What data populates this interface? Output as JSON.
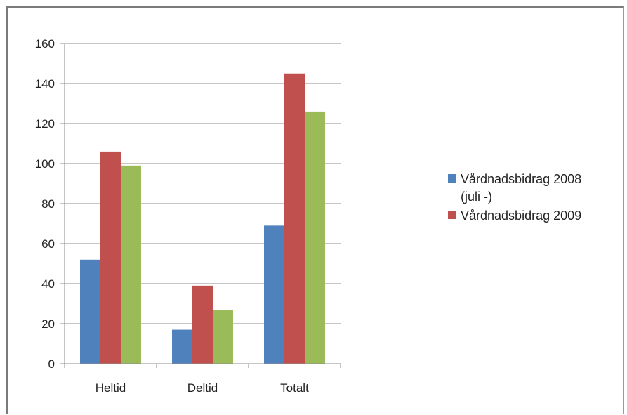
{
  "chart_data": {
    "type": "bar",
    "title": "",
    "xlabel": "",
    "ylabel": "",
    "categories": [
      "Heltid",
      "Deltid",
      "Totalt"
    ],
    "series": [
      {
        "name": "Vårdnadsbidrag 2008 (juli -)",
        "legend_lines": [
          "Vårdnadsbidrag 2008",
          "(juli -)"
        ],
        "color": "#4f81bd",
        "values": [
          52,
          17,
          69
        ]
      },
      {
        "name": "Vårdnadsbidrag 2009",
        "legend_lines": [
          "Vårdnadsbidrag 2009"
        ],
        "color": "#c0504d",
        "values": [
          106,
          39,
          145
        ]
      },
      {
        "color": "#9bbb59",
        "values": [
          99,
          27,
          126
        ]
      }
    ],
    "ylim": [
      0,
      160
    ],
    "yticks": [
      0,
      20,
      40,
      60,
      80,
      100,
      120,
      140,
      160
    ],
    "grid": true,
    "legend": "right"
  }
}
